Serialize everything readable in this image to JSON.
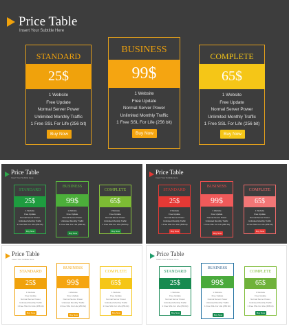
{
  "title": "Price Table",
  "subtitle": "Insert Your Subtitle Here",
  "plans": [
    {
      "name": "STANDARD",
      "price": "25$"
    },
    {
      "name": "BUSINESS",
      "price": "99$"
    },
    {
      "name": "COMPLETE",
      "price": "65$"
    }
  ],
  "features": [
    "1 Website",
    "Free Update",
    "Normal Server Power",
    "Unlimited Monthly Traffic",
    "1 Free SSL For Life (256 bit)"
  ],
  "button_label": "Buy Now",
  "colors": {
    "dark_bg": "#3d3d3d",
    "orange": "#f0a20c",
    "yellow": "#f5c617",
    "green": "#2ea84b",
    "red": "#e53935",
    "light_bg": "#ffffff"
  }
}
